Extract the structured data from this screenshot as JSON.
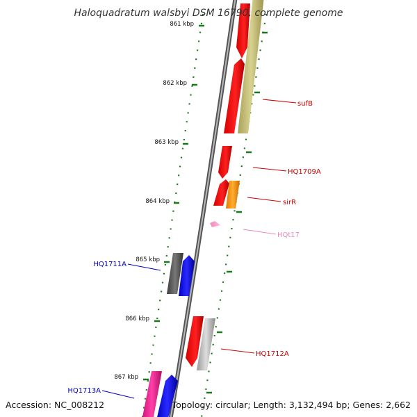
{
  "title": "Haloquadratum walsbyi DSM 16790, complete genome",
  "accession": "Accession: NC_008212",
  "topology": "Topology: circular; Length: 3,132,494 bp; Genes: 2,662",
  "ticks": [
    {
      "label": "861 kbp",
      "kbp": 861
    },
    {
      "label": "862 kbp",
      "kbp": 862
    },
    {
      "label": "863 kbp",
      "kbp": 863
    },
    {
      "label": "864 kbp",
      "kbp": 864
    },
    {
      "label": "865 kbp",
      "kbp": 865
    },
    {
      "label": "866 kbp",
      "kbp": 866
    },
    {
      "label": "867 kbp",
      "kbp": 867
    }
  ],
  "gene_labels": [
    {
      "name": "sufB",
      "color": "#cc0000"
    },
    {
      "name": "HQ1709A",
      "color": "#cc0000"
    },
    {
      "name": "sirR",
      "color": "#cc0000"
    },
    {
      "name": "HQt17",
      "color": "#ee88bb"
    },
    {
      "name": "HQ1711A",
      "color": "#0000bb"
    },
    {
      "name": "HQ1712A",
      "color": "#cc0000"
    },
    {
      "name": "HQ1713A",
      "color": "#0000bb"
    }
  ],
  "colors": {
    "backbone": "#888888",
    "tick_marks": "#1a7a1a",
    "red_gene": "#ff0000",
    "olive_gene": "#c8c27a",
    "orange_gene": "#ff9900",
    "blue_gene": "#0000ff",
    "gray_gene": "#555555",
    "lightgray_gene": "#bbbbbb",
    "magenta_gene": "#ff1493",
    "pink_gene": "#ff99cc"
  }
}
